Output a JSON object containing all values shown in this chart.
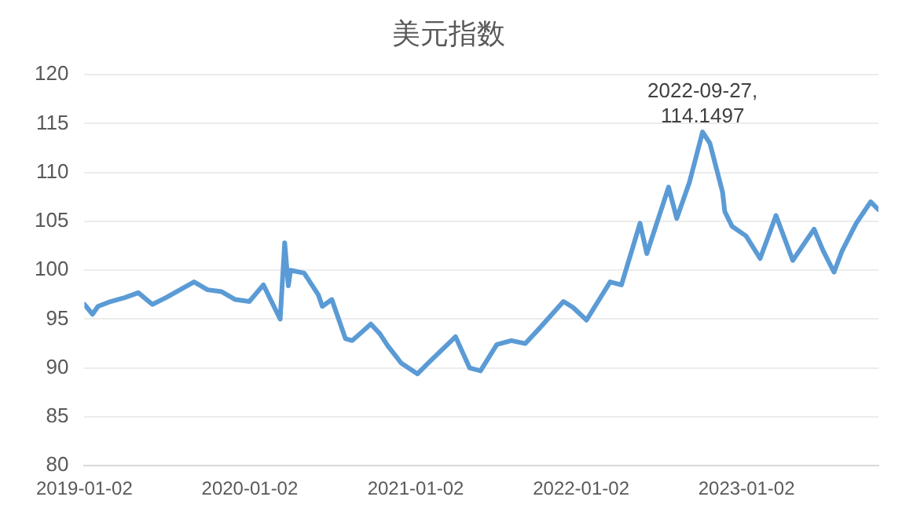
{
  "chart_data": {
    "type": "line",
    "title": "美元指数",
    "x": [
      "2019-01-02",
      "2019-01-20",
      "2019-02-01",
      "2019-03-01",
      "2019-04-01",
      "2019-05-01",
      "2019-06-01",
      "2019-07-01",
      "2019-08-01",
      "2019-09-01",
      "2019-10-01",
      "2019-11-01",
      "2019-12-01",
      "2020-01-01",
      "2020-02-01",
      "2020-03-09",
      "2020-03-19",
      "2020-03-27",
      "2020-04-01",
      "2020-05-01",
      "2020-06-01",
      "2020-06-10",
      "2020-07-01",
      "2020-07-31",
      "2020-08-15",
      "2020-09-01",
      "2020-09-25",
      "2020-10-15",
      "2020-11-01",
      "2020-12-01",
      "2021-01-06",
      "2021-02-01",
      "2021-03-31",
      "2021-05-01",
      "2021-05-25",
      "2021-06-30",
      "2021-08-01",
      "2021-09-01",
      "2021-10-01",
      "2021-11-24",
      "2021-12-15",
      "2022-01-14",
      "2022-03-07",
      "2022-04-01",
      "2022-05-12",
      "2022-05-27",
      "2022-07-14",
      "2022-08-01",
      "2022-08-29",
      "2022-09-27",
      "2022-10-13",
      "2022-11-10",
      "2022-11-15",
      "2022-12-01",
      "2023-01-01",
      "2023-02-01",
      "2023-03-08",
      "2023-04-14",
      "2023-05-31",
      "2023-06-20",
      "2023-07-14",
      "2023-08-01",
      "2023-09-01",
      "2023-10-03",
      "2023-10-20"
    ],
    "series": [
      {
        "color": "#5b9bd5",
        "values": [
          96.5,
          95.5,
          96.3,
          96.8,
          97.2,
          97.7,
          96.5,
          97.2,
          98.0,
          98.8,
          98.0,
          97.8,
          97.0,
          96.8,
          98.5,
          95.0,
          102.8,
          98.4,
          100.0,
          99.7,
          97.5,
          96.3,
          97.0,
          93.0,
          92.8,
          93.5,
          94.5,
          93.5,
          92.3,
          90.5,
          89.4,
          90.6,
          93.2,
          90.0,
          89.7,
          92.4,
          92.8,
          92.5,
          94.0,
          96.8,
          96.2,
          94.9,
          98.8,
          98.5,
          104.8,
          101.7,
          108.5,
          105.3,
          109.0,
          114.1497,
          113.0,
          108.0,
          106.0,
          104.5,
          103.5,
          101.2,
          105.6,
          101.0,
          104.2,
          102.0,
          99.8,
          102.0,
          104.8,
          107.0,
          106.2
        ]
      }
    ],
    "xlim": [
      "2019-01-02",
      "2023-10-20"
    ],
    "xticks": [
      "2019-01-02",
      "2020-01-02",
      "2021-01-02",
      "2022-01-02",
      "2023-01-02"
    ],
    "ylim": [
      80,
      120
    ],
    "yticks": [
      80,
      85,
      90,
      95,
      100,
      105,
      110,
      115,
      120
    ],
    "grid": "y",
    "legend": false,
    "marker": "none",
    "line_style": "solid",
    "annotations": [
      {
        "text": "2022-09-27,\n114.1497",
        "x": "2022-09-27",
        "y": 114.1497
      }
    ]
  }
}
